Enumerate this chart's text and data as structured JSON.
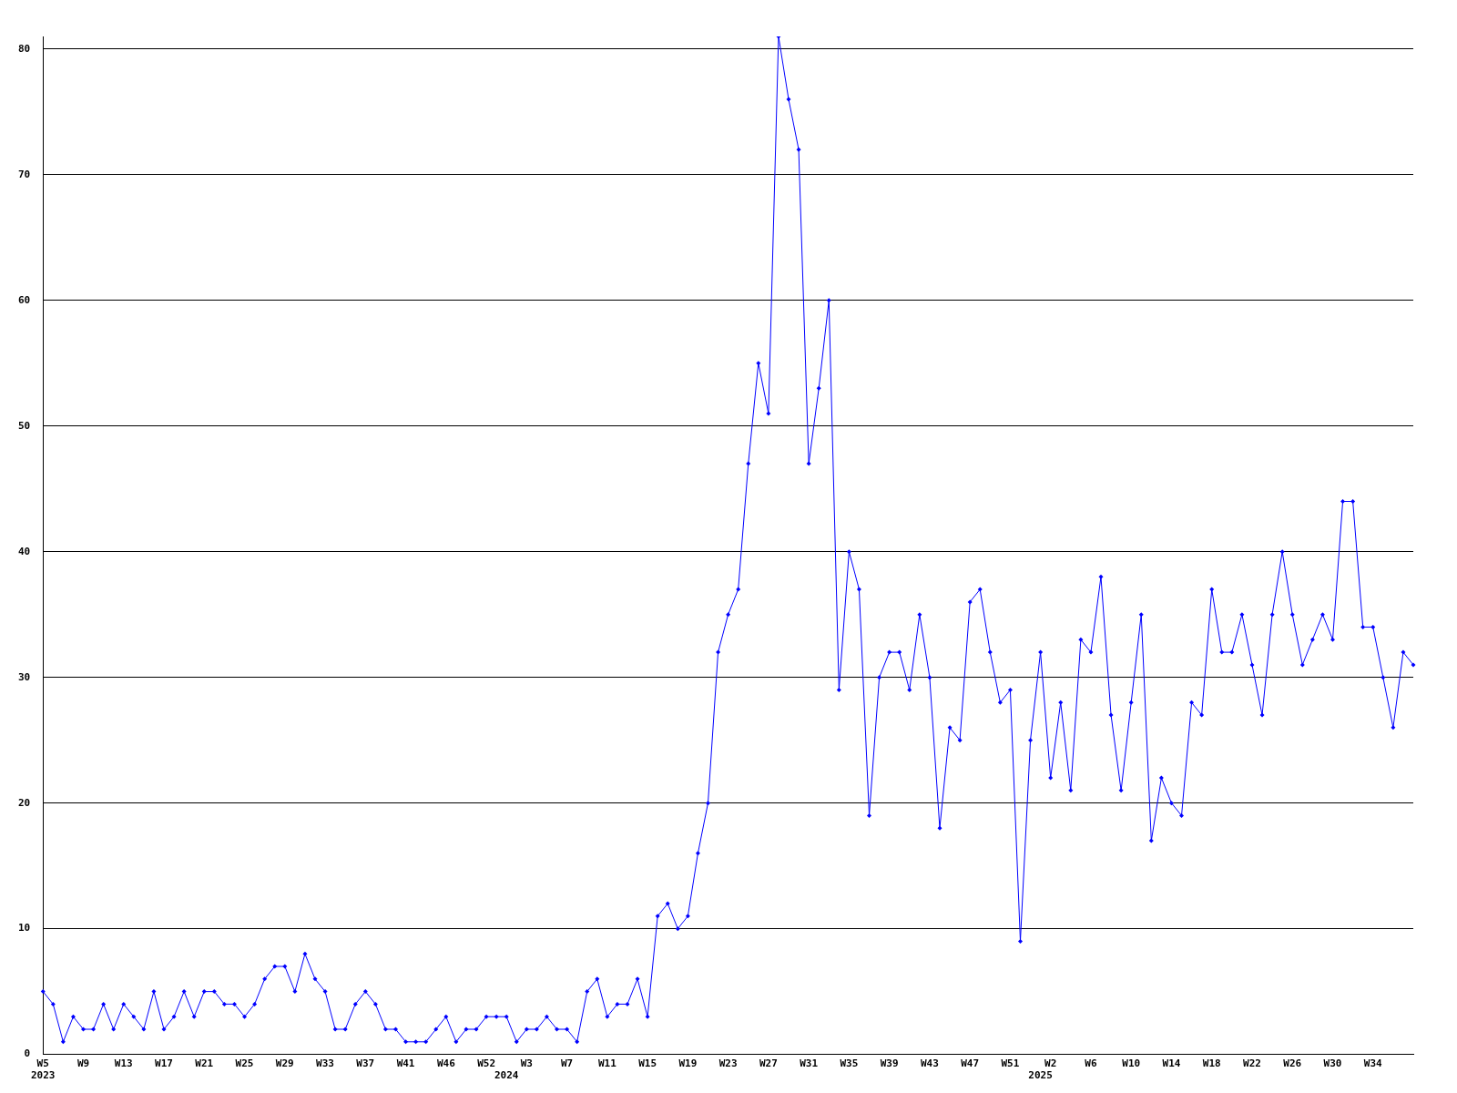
{
  "chart_data": {
    "type": "line",
    "categories": [
      "W5\n2023",
      null,
      null,
      null,
      "W9",
      null,
      null,
      null,
      "W13",
      null,
      null,
      null,
      "W17",
      null,
      null,
      null,
      "W21",
      null,
      null,
      null,
      "W25",
      null,
      null,
      null,
      "W29",
      null,
      null,
      null,
      "W33",
      null,
      null,
      null,
      "W37",
      null,
      null,
      null,
      "W41",
      null,
      null,
      null,
      "W46",
      null,
      null,
      null,
      "W52",
      null,
      "\n2024",
      null,
      "W3",
      null,
      null,
      null,
      "W7",
      null,
      null,
      null,
      "W11",
      null,
      null,
      null,
      "W15",
      null,
      null,
      null,
      "W19",
      null,
      null,
      null,
      "W23",
      null,
      null,
      null,
      "W27",
      null,
      null,
      null,
      "W31",
      null,
      null,
      null,
      "W35",
      null,
      null,
      null,
      "W39",
      null,
      null,
      null,
      "W43",
      null,
      null,
      null,
      "W47",
      null,
      null,
      null,
      "W51",
      null,
      null,
      "\n2025",
      "W2",
      null,
      null,
      null,
      "W6",
      null,
      null,
      null,
      "W10",
      null,
      null,
      null,
      "W14",
      null,
      null,
      null,
      "W18",
      null,
      null,
      null,
      "W22",
      null,
      null,
      null,
      "W26",
      null,
      null,
      null,
      "W30",
      null,
      null,
      null,
      "W34",
      null,
      null,
      null,
      null
    ],
    "series": [
      {
        "color": "#0000ff",
        "values": [
          5,
          4,
          1,
          3,
          2,
          2,
          4,
          2,
          4,
          3,
          2,
          5,
          2,
          3,
          5,
          3,
          5,
          5,
          4,
          4,
          3,
          4,
          6,
          7,
          7,
          5,
          8,
          6,
          5,
          2,
          2,
          4,
          5,
          4,
          2,
          2,
          1,
          1,
          1,
          2,
          3,
          1,
          2,
          2,
          3,
          3,
          3,
          1,
          2,
          2,
          3,
          2,
          2,
          1,
          5,
          6,
          3,
          4,
          4,
          6,
          3,
          11,
          12,
          10,
          11,
          16,
          20,
          32,
          35,
          37,
          47,
          55,
          51,
          81,
          76,
          72,
          47,
          53,
          60,
          29,
          40,
          37,
          19,
          30,
          32,
          32,
          29,
          35,
          30,
          18,
          26,
          25,
          36,
          37,
          32,
          28,
          29,
          9,
          25,
          32,
          22,
          28,
          21,
          33,
          32,
          38,
          27,
          21,
          28,
          35,
          17,
          22,
          20,
          19,
          28,
          27,
          37,
          32,
          32,
          35,
          31,
          27,
          35,
          40,
          35,
          31,
          33,
          35,
          33,
          44,
          44,
          34,
          34,
          30,
          26,
          32,
          31
        ]
      }
    ],
    "ylim": [
      0,
      81
    ],
    "yticks": [
      0,
      10,
      20,
      30,
      40,
      50,
      60,
      70,
      80
    ],
    "grid": "y",
    "marker": "diamond"
  }
}
